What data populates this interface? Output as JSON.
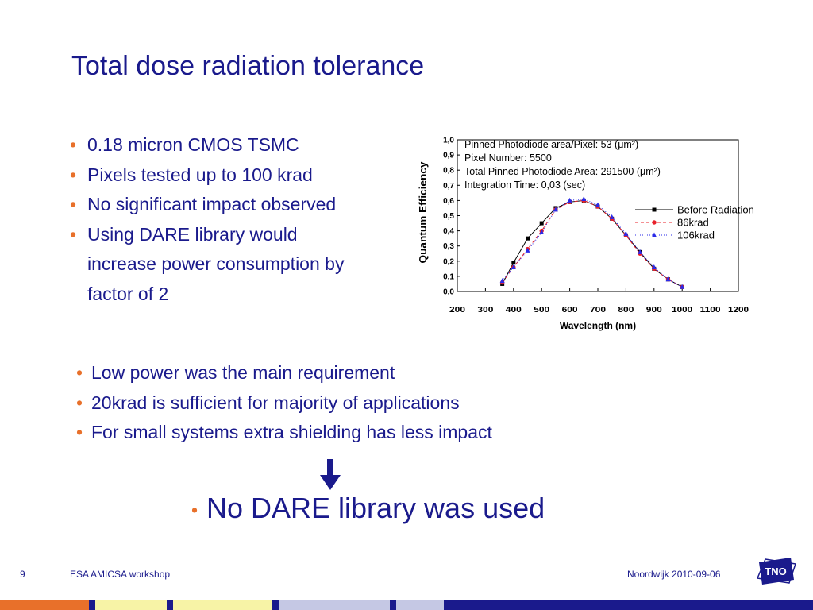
{
  "slide": {
    "title": "Total dose radiation tolerance",
    "left_bullets": [
      "0.18 micron CMOS TSMC",
      "Pixels tested up to 100 krad",
      "No significant impact observed",
      "Using DARE library would",
      "increase power consumption by",
      "factor of 2"
    ],
    "middle_bullets": [
      "Low power was the main requirement",
      "20krad is sufficient for majority of applications",
      "For small systems extra shielding has less impact"
    ],
    "conclusion": "No DARE library was used",
    "bullet_glyph": "•",
    "arrow_icon": "down-arrow-icon"
  },
  "footer": {
    "page_number": "9",
    "event": "ESA AMICSA workshop",
    "location_date": "Noordwijk  2010-09-06",
    "logo": "TNO"
  },
  "colors": {
    "title": "#1a1a8c",
    "bullet": "#e8702a",
    "stripe": [
      "#e8702a",
      "#1a1a8c",
      "#f7f3a6",
      "#1a1a8c",
      "#f7f3a6",
      "#1a1a8c",
      "#c5c8e4",
      "#1a1a8c",
      "#c5c8e4",
      "#1a1a8c"
    ]
  },
  "chart_data": {
    "type": "line",
    "xlabel": "Wavelength (nm)",
    "ylabel": "Quantum Efficiency",
    "xlim": [
      200,
      1200
    ],
    "ylim": [
      0,
      1.0
    ],
    "xticks": [
      "200",
      "300",
      "400",
      "500",
      "600",
      "700",
      "800",
      "900",
      "1000",
      "1100",
      "1200"
    ],
    "yticks": [
      "0,0",
      "0,1",
      "0,2",
      "0,3",
      "0,4",
      "0,5",
      "0,6",
      "0,7",
      "0,8",
      "0,9",
      "1,0"
    ],
    "annotations": [
      "Pinned Photodiode area/Pixel: 53 (μm²)",
      "Pixel Number: 5500",
      "Total Pinned Photodiode Area: 291500 (μm²)",
      "Integration Time: 0,03 (sec)"
    ],
    "x": [
      360,
      400,
      450,
      500,
      550,
      600,
      650,
      700,
      750,
      800,
      850,
      900,
      950,
      1000
    ],
    "series": [
      {
        "name": "Before Radiation",
        "color": "#000000",
        "marker": "square",
        "values": [
          0.05,
          0.19,
          0.35,
          0.45,
          0.55,
          0.59,
          0.6,
          0.56,
          0.48,
          0.37,
          0.26,
          0.15,
          0.08,
          0.03
        ]
      },
      {
        "name": "86krad",
        "color": "#e8202a",
        "marker": "circle",
        "values": [
          0.06,
          0.16,
          0.28,
          0.4,
          0.54,
          0.59,
          0.6,
          0.56,
          0.48,
          0.37,
          0.25,
          0.15,
          0.08,
          0.03
        ]
      },
      {
        "name": "106krad",
        "color": "#2a2ae8",
        "marker": "triangle",
        "values": [
          0.07,
          0.16,
          0.27,
          0.39,
          0.54,
          0.6,
          0.61,
          0.57,
          0.49,
          0.38,
          0.26,
          0.16,
          0.08,
          0.03
        ]
      }
    ],
    "legend": "right",
    "grid": false
  }
}
